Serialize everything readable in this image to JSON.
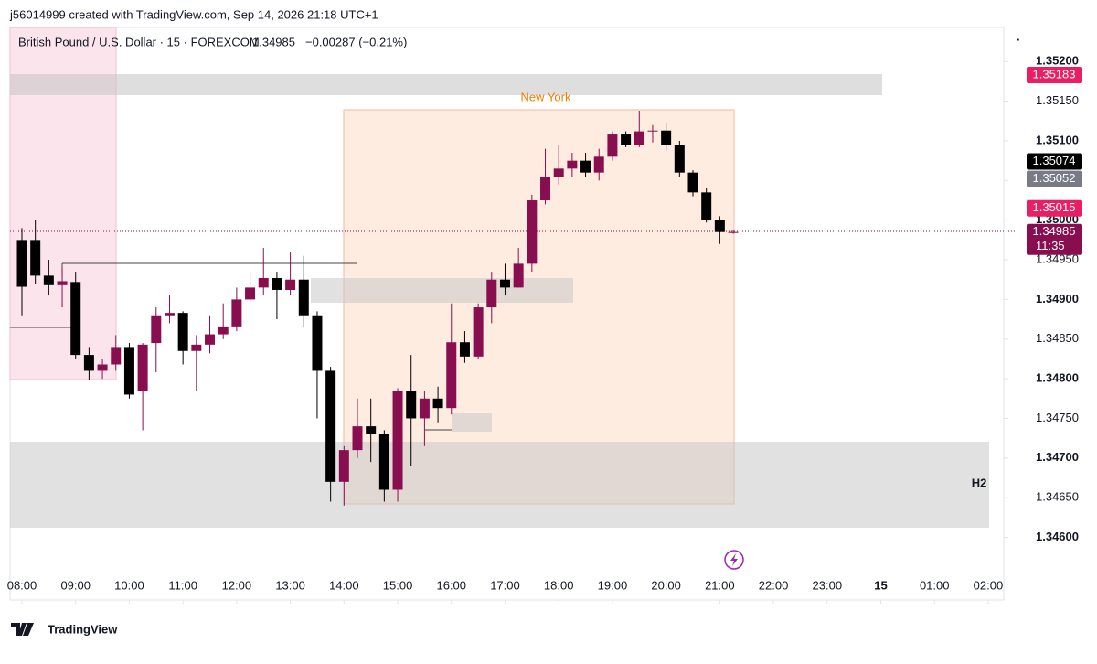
{
  "header": "j56014999 created with TradingView.com, Sep 14, 2026 21:18 UTC+1",
  "chart_data": {
    "type": "candlestick",
    "symbol": "British Pound / U.S. Dollar · 15 · FOREXCOM",
    "last": 1.34985,
    "change": "−0.00287 (−0.21%)",
    "up_color": "#880e4f",
    "down_color": "#000000",
    "open": [
      1.34975,
      1.34975,
      1.3493,
      1.34918,
      1.34922,
      1.3483,
      1.3481,
      1.34818,
      1.3484,
      1.34785,
      1.34845,
      1.3488,
      1.34883,
      1.34835,
      1.34843,
      1.34856,
      1.34866,
      1.349,
      1.34915,
      1.34927,
      1.34912,
      1.34925,
      1.3488,
      1.3481,
      1.3467,
      1.3471,
      1.3474,
      1.3473,
      1.3466,
      1.34785,
      1.3475,
      1.34775,
      1.34763,
      1.34846,
      1.34828,
      1.3489,
      1.34925,
      1.34915,
      1.34945,
      1.35025,
      1.35055,
      1.35065,
      1.35075,
      1.3506,
      1.3508,
      1.35108,
      1.35095,
      1.35112,
      1.35113,
      1.35095,
      1.3506,
      1.35035,
      1.35,
      1.34985
    ],
    "high": [
      1.3499,
      1.35,
      1.3495,
      1.3494,
      1.34935,
      1.3484,
      1.34825,
      1.34855,
      1.34845,
      1.34845,
      1.3489,
      1.34905,
      1.34885,
      1.34855,
      1.3488,
      1.34895,
      1.34915,
      1.34935,
      1.34965,
      1.34935,
      1.3496,
      1.34955,
      1.34885,
      1.34815,
      1.34715,
      1.34775,
      1.34775,
      1.34735,
      1.34788,
      1.3483,
      1.34785,
      1.3479,
      1.34895,
      1.3486,
      1.34895,
      1.34935,
      1.34945,
      1.34965,
      1.35032,
      1.3509,
      1.35095,
      1.35085,
      1.35085,
      1.3509,
      1.35112,
      1.35112,
      1.35138,
      1.3512,
      1.35122,
      1.351,
      1.35063,
      1.3504,
      1.35005,
      1.34988
    ],
    "low": [
      1.3488,
      1.3492,
      1.34905,
      1.3489,
      1.34825,
      1.34798,
      1.348,
      1.3481,
      1.34775,
      1.34735,
      1.34808,
      1.3487,
      1.34818,
      1.34785,
      1.34832,
      1.3485,
      1.3486,
      1.34895,
      1.34905,
      1.34875,
      1.34905,
      1.34865,
      1.3475,
      1.34645,
      1.3464,
      1.347,
      1.34695,
      1.34645,
      1.34645,
      1.3469,
      1.34715,
      1.34745,
      1.34755,
      1.3482,
      1.34825,
      1.3487,
      1.34905,
      1.34915,
      1.34935,
      1.3502,
      1.35045,
      1.35055,
      1.35055,
      1.3505,
      1.35075,
      1.35092,
      1.35092,
      1.35098,
      1.35088,
      1.35055,
      1.3503,
      1.34997,
      1.3497,
      1.34983
    ],
    "close": [
      1.34916,
      1.3493,
      1.34918,
      1.34923,
      1.3483,
      1.3481,
      1.34818,
      1.3484,
      1.3478,
      1.34843,
      1.3488,
      1.34883,
      1.34835,
      1.34843,
      1.34856,
      1.34866,
      1.349,
      1.34915,
      1.34927,
      1.34912,
      1.34925,
      1.3488,
      1.3481,
      1.3467,
      1.3471,
      1.3474,
      1.3473,
      1.3466,
      1.34785,
      1.3475,
      1.34775,
      1.34763,
      1.34846,
      1.34828,
      1.3489,
      1.34925,
      1.34915,
      1.34945,
      1.35025,
      1.35055,
      1.35065,
      1.35075,
      1.3506,
      1.3508,
      1.35108,
      1.35095,
      1.35112,
      1.35113,
      1.35095,
      1.3506,
      1.35035,
      1.35,
      1.34985,
      1.34985
    ],
    "xticks": [
      "08:00",
      "09:00",
      "10:00",
      "11:00",
      "12:00",
      "13:00",
      "14:00",
      "15:00",
      "16:00",
      "17:00",
      "18:00",
      "19:00",
      "20:00",
      "21:00",
      "22:00",
      "23:00",
      "15",
      "01:00",
      "02:00"
    ],
    "ylim": [
      1.34551,
      1.35243
    ],
    "yticks": [
      {
        "value": 1.346,
        "label": "1.34600"
      },
      {
        "value": 1.3465,
        "label": "1.34650"
      },
      {
        "value": 1.347,
        "label": "1.34700"
      },
      {
        "value": 1.3475,
        "label": "1.34750"
      },
      {
        "value": 1.348,
        "label": "1.34800"
      },
      {
        "value": 1.3485,
        "label": "1.34850"
      },
      {
        "value": 1.349,
        "label": "1.34900"
      },
      {
        "value": 1.3495,
        "label": "1.34950"
      },
      {
        "value": 1.35,
        "label": "1.35000"
      },
      {
        "value": 1.3505,
        "label": "1.35050"
      },
      {
        "value": 1.351,
        "label": "1.35100"
      },
      {
        "value": 1.3515,
        "label": "1.35150"
      },
      {
        "value": 1.352,
        "label": "1.35200"
      }
    ],
    "price_tags": [
      {
        "value": 1.35183,
        "color": "#e91e63"
      },
      {
        "value": 1.35074,
        "color": "#000000"
      },
      {
        "value": 1.35052,
        "color": "#787b86"
      },
      {
        "value": 1.35015,
        "color": "#e91e63"
      }
    ],
    "countdown": "11:35",
    "annotations": [
      "New York",
      "H2"
    ]
  },
  "footer": "TradingView"
}
